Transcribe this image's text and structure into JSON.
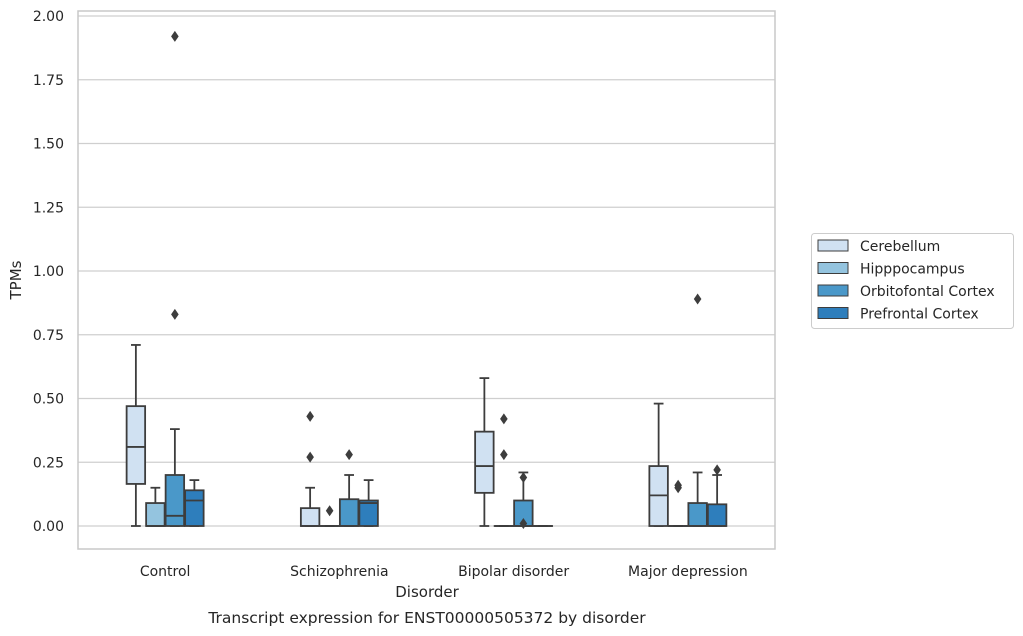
{
  "chart_data": {
    "type": "boxplot",
    "caption": "Transcript expression for ENST00000505372 by disorder",
    "xlabel": "Disorder",
    "ylabel": "TPMs",
    "ylim": [
      -0.09,
      2.02
    ],
    "yticks": [
      "0.00",
      "0.25",
      "0.50",
      "0.75",
      "1.00",
      "1.25",
      "1.50",
      "1.75",
      "2.00"
    ],
    "grid": "horizontal",
    "legend_position": "right, outside plot",
    "categories": [
      "Control",
      "Schizophrenia",
      "Bipolar disorder",
      "Major depression"
    ],
    "series": [
      {
        "name": "Cerebellum",
        "color": "#d0e1f2",
        "boxes": [
          {
            "whislo": 0.0,
            "q1": 0.165,
            "med": 0.31,
            "q3": 0.47,
            "whishi": 0.71,
            "fliers": []
          },
          {
            "whislo": 0.0,
            "q1": 0.0,
            "med": 0.0,
            "q3": 0.07,
            "whishi": 0.15,
            "fliers": [
              0.27,
              0.43
            ]
          },
          {
            "whislo": 0.0,
            "q1": 0.13,
            "med": 0.235,
            "q3": 0.37,
            "whishi": 0.58,
            "fliers": []
          },
          {
            "whislo": 0.0,
            "q1": 0.0,
            "med": 0.12,
            "q3": 0.235,
            "whishi": 0.48,
            "fliers": []
          }
        ]
      },
      {
        "name": "Hipppocampus",
        "color": "#94c4df",
        "boxes": [
          {
            "whislo": 0.0,
            "q1": 0.0,
            "med": 0.0,
            "q3": 0.09,
            "whishi": 0.15,
            "fliers": []
          },
          {
            "whislo": 0.0,
            "q1": 0.0,
            "med": 0.0,
            "q3": 0.0,
            "whishi": 0.0,
            "fliers": [
              0.06
            ]
          },
          {
            "whislo": 0.0,
            "q1": 0.0,
            "med": 0.0,
            "q3": 0.0,
            "whishi": 0.0,
            "fliers": [
              0.28,
              0.42
            ]
          },
          {
            "whislo": 0.0,
            "q1": 0.0,
            "med": 0.0,
            "q3": 0.0,
            "whishi": 0.0,
            "fliers": [
              0.15,
              0.16
            ]
          }
        ]
      },
      {
        "name": "Orbitofontal Cortex",
        "color": "#4a98c9",
        "boxes": [
          {
            "whislo": 0.0,
            "q1": 0.0,
            "med": 0.04,
            "q3": 0.2,
            "whishi": 0.38,
            "fliers": [
              0.83,
              1.92
            ]
          },
          {
            "whislo": 0.0,
            "q1": 0.0,
            "med": 0.0,
            "q3": 0.105,
            "whishi": 0.2,
            "fliers": [
              0.28
            ]
          },
          {
            "whislo": 0.0,
            "q1": 0.0,
            "med": 0.0,
            "q3": 0.1,
            "whishi": 0.21,
            "fliers": [
              0.01,
              0.19
            ]
          },
          {
            "whislo": 0.0,
            "q1": 0.0,
            "med": 0.0,
            "q3": 0.09,
            "whishi": 0.21,
            "fliers": [
              0.89
            ]
          }
        ]
      },
      {
        "name": "Prefrontal Cortex",
        "color": "#2e7ebc",
        "boxes": [
          {
            "whislo": 0.0,
            "q1": 0.0,
            "med": 0.1,
            "q3": 0.14,
            "whishi": 0.18,
            "fliers": []
          },
          {
            "whislo": 0.0,
            "q1": 0.0,
            "med": 0.09,
            "q3": 0.1,
            "whishi": 0.18,
            "fliers": []
          },
          {
            "whislo": 0.0,
            "q1": 0.0,
            "med": 0.0,
            "q3": 0.0,
            "whishi": 0.0,
            "fliers": []
          },
          {
            "whislo": 0.0,
            "q1": 0.0,
            "med": 0.0,
            "q3": 0.085,
            "whishi": 0.2,
            "fliers": [
              0.22
            ]
          }
        ]
      }
    ]
  }
}
